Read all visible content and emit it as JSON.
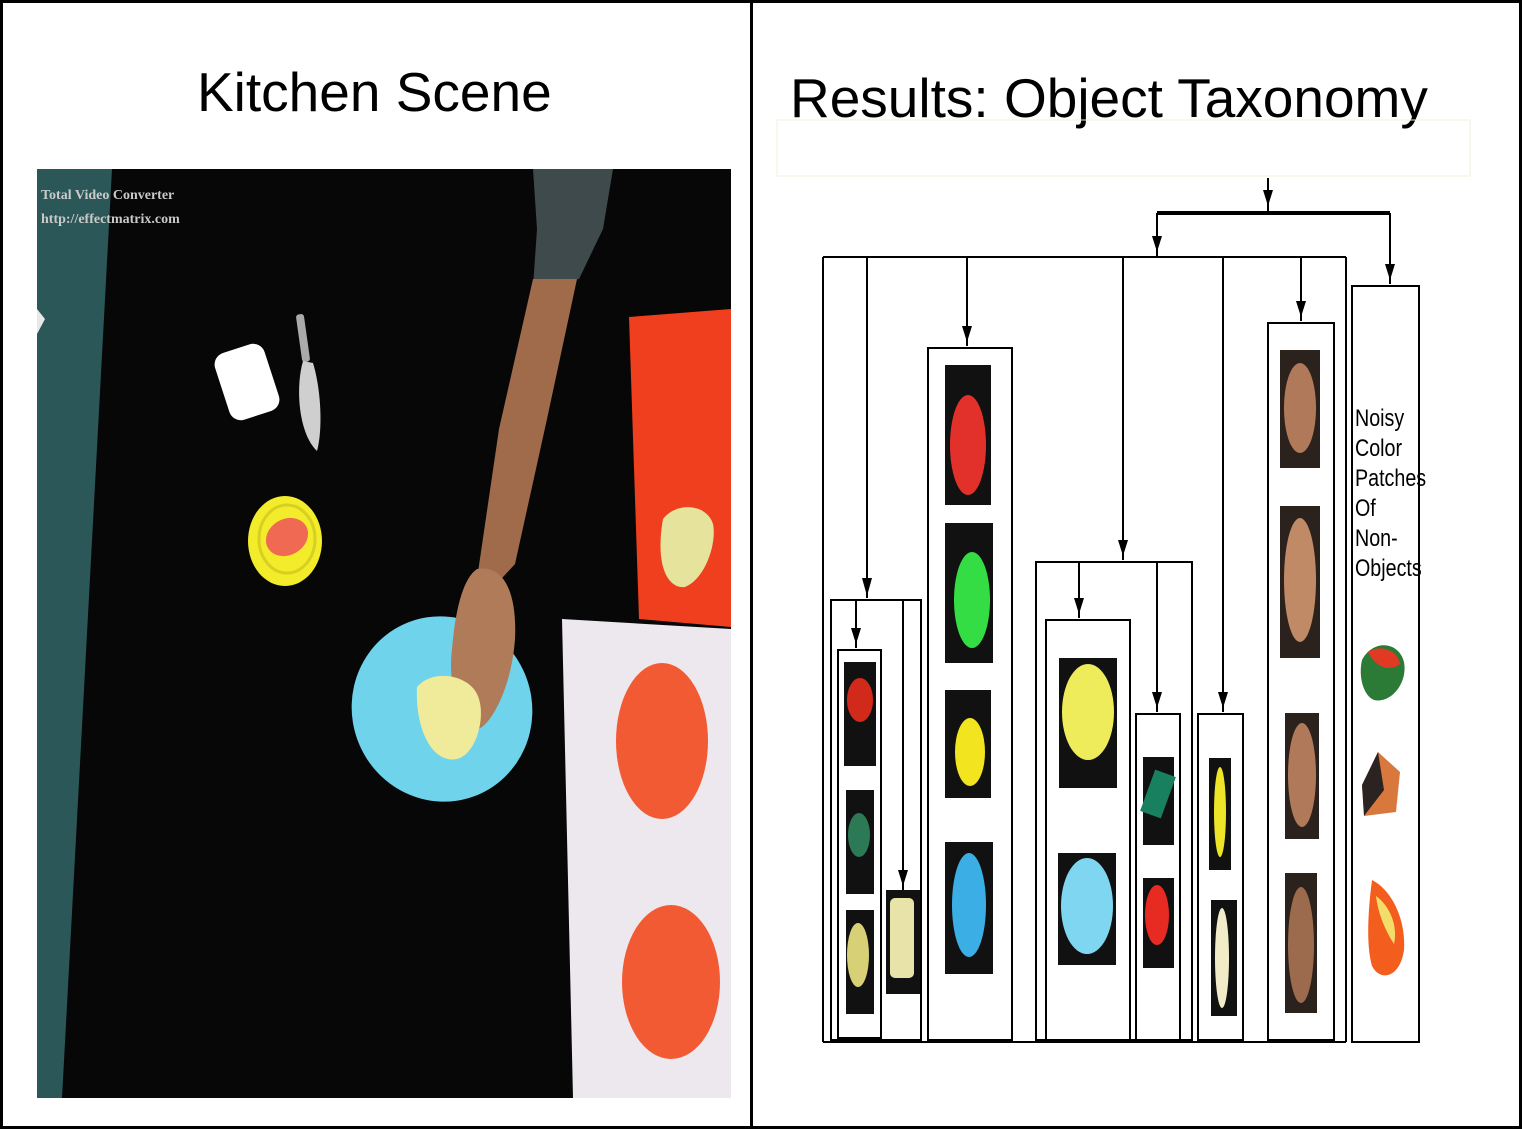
{
  "panels": {
    "left_title": "Kitchen Scene",
    "right_title": "Results: Object Taxonomy"
  },
  "scene": {
    "watermark_line1": "Total Video Converter",
    "watermark_line2": "http://effectmatrix.com"
  },
  "taxonomy": {
    "noisy_lines": [
      "Noisy",
      "Color",
      "Patches",
      "Of",
      "Non-",
      "Objects"
    ]
  },
  "colors": {
    "table": "#070707",
    "red_board": "#ef3f1f",
    "blue_plate": "#6fd3ec",
    "yellow_plate": "#f2ec2a",
    "orange_circle": "#f25a33",
    "white_board": "#ece8ee"
  }
}
